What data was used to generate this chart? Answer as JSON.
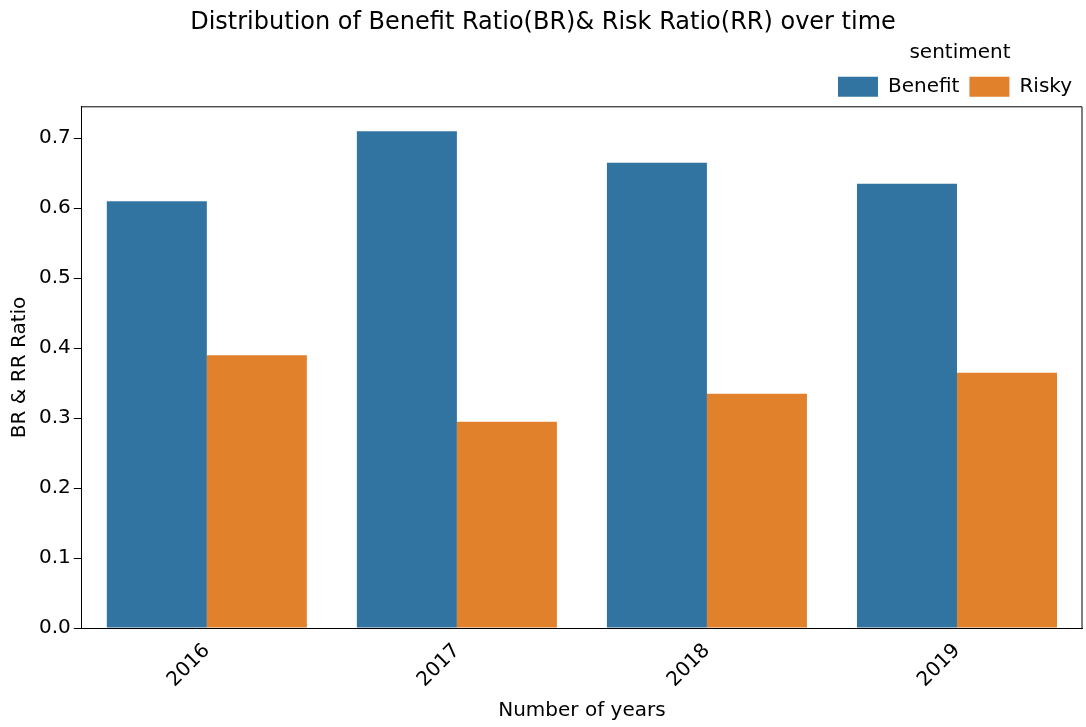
{
  "chart_data": {
    "type": "bar",
    "title": "Distribution of Benefit Ratio(BR)& Risk Ratio(RR) over time",
    "xlabel": "Number of years",
    "ylabel": "BR & RR Ratio",
    "legend_title": "sentiment",
    "legend": "top right",
    "grid": false,
    "categories": [
      "2016",
      "2017",
      "2018",
      "2019"
    ],
    "series": [
      {
        "name": "Benefit",
        "color": "#3274a1",
        "values": [
          0.61,
          0.71,
          0.665,
          0.635
        ]
      },
      {
        "name": "Risky",
        "color": "#e1812c",
        "values": [
          0.39,
          0.295,
          0.335,
          0.365
        ]
      }
    ],
    "ylim": [
      0,
      0.745
    ],
    "yticks": [
      {
        "value": 0,
        "label": "0.0"
      },
      0.1,
      0.2,
      0.3,
      0.4,
      0.5,
      0.6,
      0.7
    ]
  }
}
